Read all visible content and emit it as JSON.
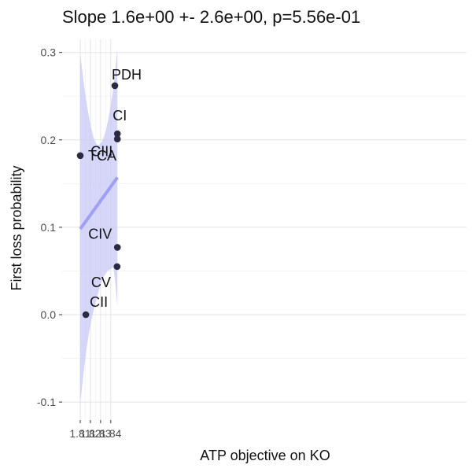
{
  "chart_data": {
    "type": "scatter",
    "title": "Slope 1.6e+00 +- 2.6e+00, p=5.56e-01",
    "xlabel": "ATP objective on KO",
    "ylabel": "First loss probability",
    "xlim": [
      1.8075,
      1.8476
    ],
    "ylim": [
      -0.11,
      0.31
    ],
    "x_ticks": [
      1.81,
      1.82,
      1.83,
      1.84
    ],
    "x_tick_labels": [
      "1.81",
      "1.82",
      "1.83",
      "1.84"
    ],
    "y_ticks": [
      -0.1,
      0.0,
      0.1,
      0.2,
      0.3
    ],
    "y_tick_labels": [
      "-0.1",
      "0.0",
      "0.1",
      "0.2",
      "0.3"
    ],
    "grid": true,
    "points": [
      {
        "label": "TCA",
        "x": 1.81,
        "y": 0.182
      },
      {
        "label": "CII",
        "x": 1.8155,
        "y": 0.0
      },
      {
        "label": "PDH",
        "x": 1.844,
        "y": 0.262
      },
      {
        "label": "CI",
        "x": 1.8465,
        "y": 0.207
      },
      {
        "label": "CIII",
        "x": 1.8465,
        "y": 0.201
      },
      {
        "label": "CIV",
        "x": 1.8465,
        "y": 0.077
      },
      {
        "label": "CV",
        "x": 1.8462,
        "y": 0.055
      }
    ],
    "fit_line": {
      "x": [
        1.81,
        1.8465
      ],
      "y": [
        0.098,
        0.157
      ]
    },
    "confidence_band": {
      "x": [
        1.81,
        1.815,
        1.82,
        1.825,
        1.83,
        1.835,
        1.84,
        1.843,
        1.8465
      ],
      "upper": [
        0.298,
        0.252,
        0.218,
        0.197,
        0.196,
        0.21,
        0.24,
        0.265,
        0.305
      ],
      "lower": [
        -0.102,
        -0.05,
        -0.012,
        0.013,
        0.034,
        0.047,
        0.052,
        0.05,
        0.01
      ]
    },
    "colors": {
      "band": "#c8c8f7",
      "fit": "#9f9ff3",
      "point": "#2a2a42",
      "panel": "#ffffff",
      "grid": "#e3e3e3"
    }
  }
}
